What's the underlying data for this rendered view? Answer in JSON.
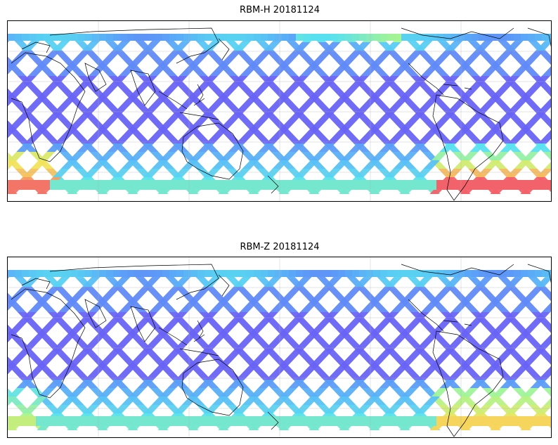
{
  "panels": [
    {
      "title": "RBM-H 20181124",
      "palette": {
        "low": "#6a5cf5",
        "midlow": "#5aa8f8",
        "mid": "#58e0f0",
        "midhigh": "#a8f590",
        "high": "#f5e25a",
        "hot": "#f2626a"
      },
      "intensity_note": "elevated values in southern high latitudes"
    },
    {
      "title": "RBM-Z 20181124",
      "palette": {
        "low": "#6a5cf5",
        "midlow": "#5aa8f8",
        "mid": "#58e0f0",
        "midhigh": "#a8f590",
        "high": "#f5e25a",
        "hot": "#f2626a"
      },
      "intensity_note": "mostly low values"
    }
  ]
}
